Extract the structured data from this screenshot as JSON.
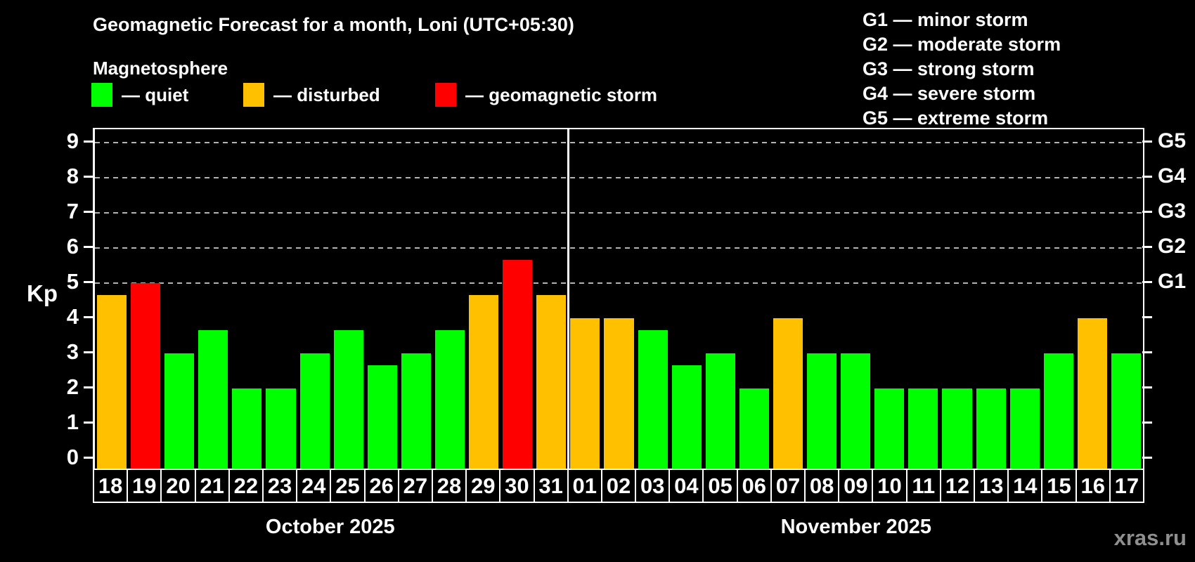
{
  "title": "Geomagnetic Forecast for a month, Loni (UTC+05:30)",
  "subtitle": "Magnetosphere",
  "legend": {
    "items": [
      {
        "label": "— quiet",
        "status": "quiet",
        "color": "#00ff00"
      },
      {
        "label": "— disturbed",
        "status": "disturbed",
        "color": "#ffc000"
      },
      {
        "label": "— geomagnetic storm",
        "status": "storm",
        "color": "#ff0000"
      }
    ]
  },
  "g_legend": {
    "lines": [
      "G1 — minor storm",
      "G2 — moderate storm",
      "G3 — strong storm",
      "G4 — severe storm",
      "G5 — extreme storm"
    ]
  },
  "watermark": "xras.ru",
  "chart_data": {
    "type": "bar",
    "title": "Geomagnetic Forecast for a month, Loni (UTC+05:30)",
    "ylabel": "Kp",
    "ylim": [
      0,
      9
    ],
    "yticks": [
      0,
      1,
      2,
      3,
      4,
      5,
      6,
      7,
      8,
      9
    ],
    "gridlines_kp": [
      5,
      6,
      7,
      8,
      9
    ],
    "grid": "dashed horizontal at storm levels only",
    "legend_position": "top-left and top-right",
    "right_axis": [
      {
        "kp": 5,
        "label": "G1"
      },
      {
        "kp": 6,
        "label": "G2"
      },
      {
        "kp": 7,
        "label": "G3"
      },
      {
        "kp": 8,
        "label": "G4"
      },
      {
        "kp": 9,
        "label": "G5"
      }
    ],
    "status_colors": {
      "quiet": "#00ff00",
      "disturbed": "#ffc000",
      "storm": "#ff0000"
    },
    "groups": [
      {
        "month": "October 2025",
        "points": [
          {
            "day": "18",
            "kp": 4.67,
            "status": "disturbed"
          },
          {
            "day": "19",
            "kp": 5.0,
            "status": "storm"
          },
          {
            "day": "20",
            "kp": 3.0,
            "status": "quiet"
          },
          {
            "day": "21",
            "kp": 3.67,
            "status": "quiet"
          },
          {
            "day": "22",
            "kp": 2.0,
            "status": "quiet"
          },
          {
            "day": "23",
            "kp": 2.0,
            "status": "quiet"
          },
          {
            "day": "24",
            "kp": 3.0,
            "status": "quiet"
          },
          {
            "day": "25",
            "kp": 3.67,
            "status": "quiet"
          },
          {
            "day": "26",
            "kp": 2.67,
            "status": "quiet"
          },
          {
            "day": "27",
            "kp": 3.0,
            "status": "quiet"
          },
          {
            "day": "28",
            "kp": 3.67,
            "status": "quiet"
          },
          {
            "day": "29",
            "kp": 4.67,
            "status": "disturbed"
          },
          {
            "day": "30",
            "kp": 5.67,
            "status": "storm"
          },
          {
            "day": "31",
            "kp": 4.67,
            "status": "disturbed"
          }
        ]
      },
      {
        "month": "November 2025",
        "points": [
          {
            "day": "01",
            "kp": 4.0,
            "status": "disturbed"
          },
          {
            "day": "02",
            "kp": 4.0,
            "status": "disturbed"
          },
          {
            "day": "03",
            "kp": 3.67,
            "status": "quiet"
          },
          {
            "day": "04",
            "kp": 2.67,
            "status": "quiet"
          },
          {
            "day": "05",
            "kp": 3.0,
            "status": "quiet"
          },
          {
            "day": "06",
            "kp": 2.0,
            "status": "quiet"
          },
          {
            "day": "07",
            "kp": 4.0,
            "status": "disturbed"
          },
          {
            "day": "08",
            "kp": 3.0,
            "status": "quiet"
          },
          {
            "day": "09",
            "kp": 3.0,
            "status": "quiet"
          },
          {
            "day": "10",
            "kp": 2.0,
            "status": "quiet"
          },
          {
            "day": "11",
            "kp": 2.0,
            "status": "quiet"
          },
          {
            "day": "12",
            "kp": 2.0,
            "status": "quiet"
          },
          {
            "day": "13",
            "kp": 2.0,
            "status": "quiet"
          },
          {
            "day": "14",
            "kp": 2.0,
            "status": "quiet"
          },
          {
            "day": "15",
            "kp": 3.0,
            "status": "quiet"
          },
          {
            "day": "16",
            "kp": 4.0,
            "status": "disturbed"
          },
          {
            "day": "17",
            "kp": 3.0,
            "status": "quiet"
          }
        ]
      }
    ]
  }
}
